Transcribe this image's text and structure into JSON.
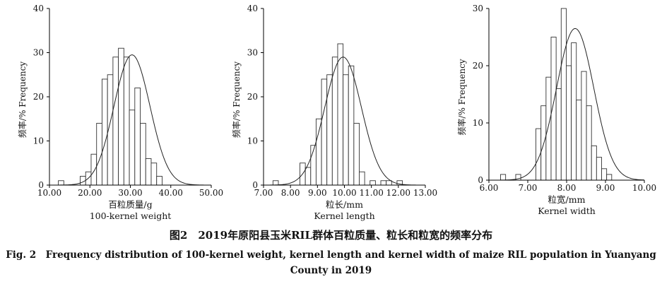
{
  "figure": {
    "caption_cn": "图2　2019年原阳县玉米RIL群体百粒质量、粒长和粒宽的频率分布",
    "caption_en_line1": "Fig. 2　Frequency distribution of 100-kernel weight, kernel length and kernel width of maize RIL population in Yuanyang",
    "caption_en_line2": "County in 2019"
  },
  "chart_data": [
    {
      "type": "bar",
      "ylabel": "频率/% Frequency",
      "xlabel_cn": "百粒质量/g",
      "xlabel_en": "100-kernel weight",
      "xlim": [
        10,
        50
      ],
      "ylim": [
        0,
        40
      ],
      "x_ticks": [
        "10.00",
        "20.00",
        "30.00",
        "40.00",
        "50.00"
      ],
      "y_ticks": [
        "0",
        "10",
        "20",
        "30",
        "40"
      ],
      "bin_width": 1.35,
      "bin_start": 12.2,
      "values": [
        1,
        0,
        0,
        0,
        2,
        3,
        7,
        14,
        24,
        25,
        29,
        31,
        29,
        17,
        22,
        14,
        6,
        5,
        2,
        0,
        0,
        0
      ],
      "normal_curve": {
        "mean": 30.4,
        "sd": 4.45,
        "peak": 29.5
      }
    },
    {
      "type": "bar",
      "ylabel": "频率/% Frequency",
      "xlabel_cn": "粒长/mm",
      "xlabel_en": "Kernel length",
      "xlim": [
        7,
        13
      ],
      "ylim": [
        0,
        40
      ],
      "x_ticks": [
        "7.00",
        "8.00",
        "9.00",
        "10.00",
        "11.00",
        "12.00",
        "13.00"
      ],
      "y_ticks": [
        "0",
        "10",
        "20",
        "30",
        "40"
      ],
      "bin_width": 0.2,
      "bin_start": 7.35,
      "values": [
        1,
        0,
        0,
        0,
        0,
        5,
        4,
        9,
        15,
        24,
        25,
        29,
        32,
        25,
        27,
        14,
        3,
        0,
        1,
        0,
        1,
        1,
        0,
        1
      ],
      "normal_curve": {
        "mean": 9.95,
        "sd": 0.68,
        "peak": 29
      }
    },
    {
      "type": "bar",
      "ylabel": "频率/% Frequency",
      "xlabel_cn": "粒宽/mm",
      "xlabel_en": "Kernel width",
      "xlim": [
        6,
        10
      ],
      "ylim": [
        0,
        30
      ],
      "x_ticks": [
        "6.00",
        "7.00",
        "8.00",
        "9.00",
        "10.00"
      ],
      "y_ticks": [
        "0",
        "10",
        "20",
        "30"
      ],
      "bin_width": 0.13,
      "bin_start": 6.3,
      "values": [
        1,
        0,
        0,
        1,
        0,
        0,
        0,
        9,
        13,
        18,
        25,
        16,
        30,
        20,
        24,
        14,
        19,
        13,
        6,
        4,
        2,
        1,
        0,
        0,
        0
      ],
      "normal_curve": {
        "mean": 8.22,
        "sd": 0.48,
        "peak": 26.5
      }
    }
  ]
}
